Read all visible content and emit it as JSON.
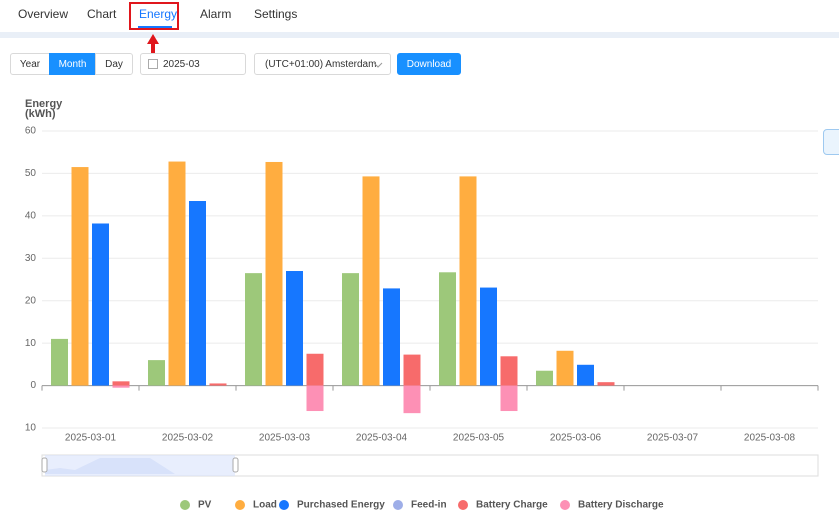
{
  "tabs": [
    "Overview",
    "Chart",
    "Energy",
    "Alarm",
    "Settings"
  ],
  "controls": {
    "periods": [
      "Year",
      "Month",
      "Day"
    ],
    "date": "2025-03",
    "timezone": "(UTC+01:00) Amsterdam",
    "download": "Download"
  },
  "chart_data": {
    "type": "bar",
    "y_label": "Energy (kWh)",
    "categories": [
      "2025-03-01",
      "2025-03-02",
      "2025-03-03",
      "2025-03-04",
      "2025-03-05",
      "2025-03-06",
      "2025-03-07",
      "2025-03-08"
    ],
    "series": [
      {
        "name": "PV",
        "color": "#9dc87a",
        "values": [
          11,
          6,
          26.5,
          26.5,
          26.7,
          3.5,
          null,
          null
        ]
      },
      {
        "name": "Load",
        "color": "#ffad40",
        "values": [
          51.5,
          52.8,
          52.7,
          49.3,
          49.3,
          8.2,
          null,
          null
        ]
      },
      {
        "name": "Purchased Energy",
        "color": "#1677ff",
        "values": [
          38.2,
          43.5,
          27,
          22.9,
          23.1,
          4.9,
          null,
          null
        ]
      },
      {
        "name": "Feed-in",
        "color": "#9eaee8",
        "values": [
          null,
          null,
          null,
          null,
          null,
          null,
          null,
          null
        ]
      },
      {
        "name": "Battery Charge",
        "color": "#f76b6b",
        "values": [
          1,
          0.5,
          7.5,
          7.3,
          6.9,
          0.8,
          null,
          null
        ]
      },
      {
        "name": "Battery Discharge",
        "color": "#fd90b5",
        "values": [
          -0.5,
          null,
          -6,
          -6.5,
          -6,
          null,
          null,
          null
        ]
      }
    ],
    "ylim": [
      -10,
      60
    ],
    "yticks": [
      {
        "value": -10,
        "label": "10"
      },
      0,
      10,
      20,
      30,
      40,
      50,
      60
    ],
    "grid": true
  }
}
